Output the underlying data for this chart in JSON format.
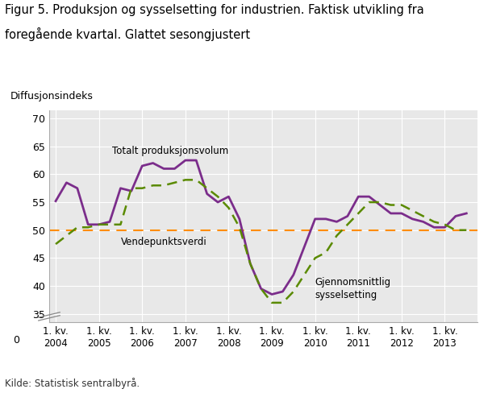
{
  "title_line1": "Figur 5. Produksjon og sysselsetting for industrien. Faktisk utvikling fra",
  "title_line2": "foregående kvartal. Glattet sesongjustert",
  "ylabel": "Diffusjonsindeks",
  "source": "Kilde: Statistisk sentralbyrå.",
  "vendepunkt_label": "Vendepunktsverdi",
  "prod_label": "Totalt produksjonsvolum",
  "syss_label": "Gjennomsnittlig\nsysselsetting",
  "vendepunkt_y": 50,
  "prod_color": "#7B2D8B",
  "syss_color": "#5A8A00",
  "vendepunkt_color": "#FF8C00",
  "background_color": "#E8E8E8",
  "prod_line": {
    "x": [
      2004.0,
      2004.25,
      2004.5,
      2004.75,
      2005.0,
      2005.25,
      2005.5,
      2005.75,
      2006.0,
      2006.25,
      2006.5,
      2006.75,
      2007.0,
      2007.25,
      2007.5,
      2007.75,
      2008.0,
      2008.25,
      2008.5,
      2008.75,
      2009.0,
      2009.25,
      2009.5,
      2009.75,
      2010.0,
      2010.25,
      2010.5,
      2010.75,
      2011.0,
      2011.25,
      2011.5,
      2011.75,
      2012.0,
      2012.25,
      2012.5,
      2012.75,
      2013.0,
      2013.25,
      2013.5
    ],
    "y": [
      55.2,
      58.5,
      57.5,
      51.0,
      51.0,
      51.5,
      57.5,
      57.0,
      61.5,
      62.0,
      61.0,
      61.0,
      62.5,
      62.5,
      56.5,
      55.0,
      56.0,
      52.0,
      44.0,
      39.5,
      38.5,
      39.0,
      42.0,
      47.0,
      52.0,
      52.0,
      51.5,
      52.5,
      56.0,
      56.0,
      54.5,
      53.0,
      53.0,
      52.0,
      51.5,
      50.5,
      50.5,
      52.5,
      53.0
    ]
  },
  "syss_line": {
    "x": [
      2004.0,
      2004.25,
      2004.5,
      2004.75,
      2005.0,
      2005.25,
      2005.5,
      2005.75,
      2006.0,
      2006.25,
      2006.5,
      2006.75,
      2007.0,
      2007.25,
      2007.5,
      2007.75,
      2008.0,
      2008.25,
      2008.5,
      2008.75,
      2009.0,
      2009.25,
      2009.5,
      2009.75,
      2010.0,
      2010.25,
      2010.5,
      2010.75,
      2011.0,
      2011.25,
      2011.5,
      2011.75,
      2012.0,
      2012.25,
      2012.5,
      2012.75,
      2013.0,
      2013.25,
      2013.5
    ],
    "y": [
      47.5,
      49.0,
      50.5,
      50.5,
      51.0,
      51.0,
      51.0,
      57.5,
      57.5,
      58.0,
      58.0,
      58.5,
      59.0,
      59.0,
      57.5,
      56.0,
      54.0,
      50.5,
      44.0,
      39.5,
      37.0,
      37.0,
      39.0,
      42.0,
      45.0,
      46.0,
      49.0,
      51.0,
      53.0,
      55.0,
      55.0,
      54.5,
      54.5,
      53.5,
      52.5,
      51.5,
      51.0,
      50.0,
      50.0
    ]
  },
  "xtick_positions": [
    2004.0,
    2005.0,
    2006.0,
    2007.0,
    2008.0,
    2009.0,
    2010.0,
    2011.0,
    2012.0,
    2013.0
  ],
  "xtick_labels": [
    "1. kv.\n2004",
    "1. kv.\n2005",
    "1. kv.\n2006",
    "1. kv.\n2007",
    "1. kv.\n2008",
    "1. kv.\n2009",
    "1. kv.\n2010",
    "1. kv.\n2011",
    "1. kv.\n2012",
    "1. kv.\n2013"
  ],
  "yticks": [
    35,
    40,
    45,
    50,
    55,
    60,
    65,
    70
  ],
  "xlim": [
    2003.85,
    2013.75
  ],
  "ylim": [
    33.5,
    71.5
  ]
}
